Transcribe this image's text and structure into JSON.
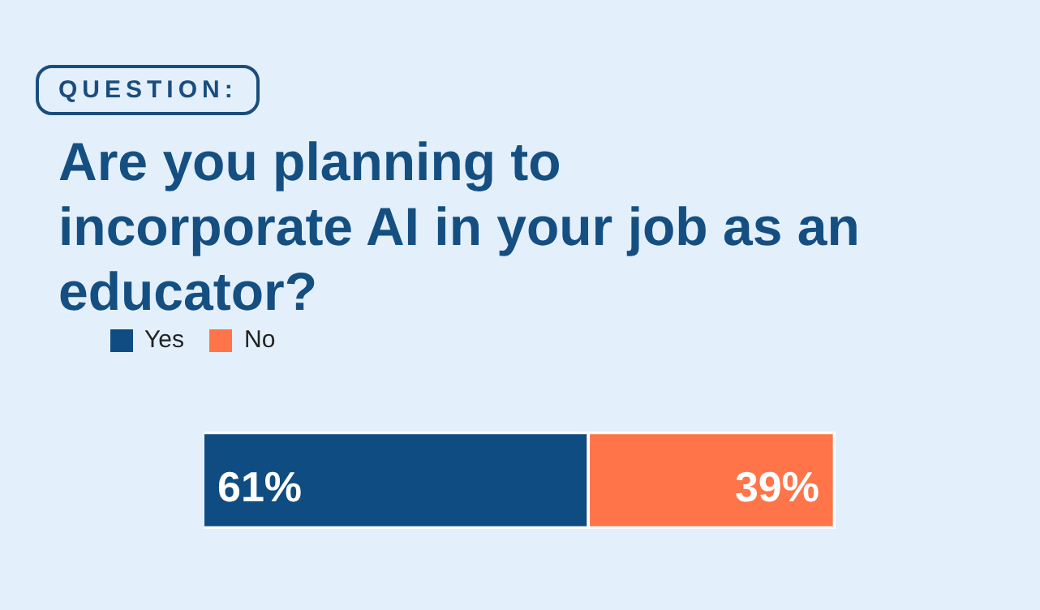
{
  "chart_data": {
    "type": "bar",
    "orientation": "horizontal",
    "stacked": true,
    "title": "Are you planning to incorporate AI in your job as an educator?",
    "annotations": [
      "QUESTION:"
    ],
    "categories": [
      null
    ],
    "series": [
      {
        "name": "Yes",
        "color": "#0f4c81",
        "values": [
          61
        ],
        "value_labels": [
          "61%"
        ]
      },
      {
        "name": "No",
        "color": "#ff7448",
        "values": [
          39
        ],
        "value_labels": [
          "39%"
        ]
      }
    ],
    "xlim": [
      0,
      100
    ],
    "tick_labels": false,
    "legend": "top left"
  }
}
